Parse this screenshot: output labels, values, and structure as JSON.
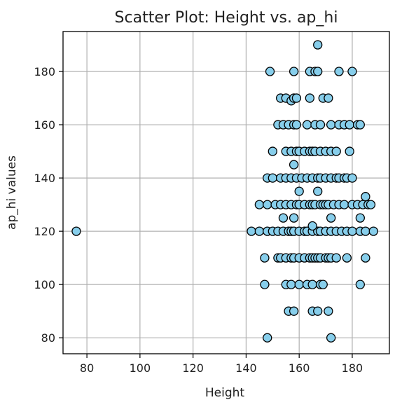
{
  "chart_data": {
    "type": "scatter",
    "title": "Scatter Plot: Height vs. ap_hi",
    "xlabel": "Height",
    "ylabel": "ap_hi values",
    "xlim": [
      71,
      194
    ],
    "ylim": [
      74,
      195
    ],
    "xticks": [
      80,
      100,
      120,
      140,
      160,
      180
    ],
    "yticks": [
      80,
      100,
      120,
      140,
      160,
      180
    ],
    "grid": true,
    "marker_color": "#87CEEB",
    "marker_edge_color": "#000000",
    "points": [
      [
        76,
        120
      ],
      [
        148,
        80
      ],
      [
        172,
        80
      ],
      [
        156,
        90
      ],
      [
        158,
        90
      ],
      [
        165,
        90
      ],
      [
        167,
        90
      ],
      [
        171,
        90
      ],
      [
        147,
        100
      ],
      [
        155,
        100
      ],
      [
        157,
        100
      ],
      [
        160,
        100
      ],
      [
        163,
        100
      ],
      [
        165,
        100
      ],
      [
        168,
        100
      ],
      [
        169,
        100
      ],
      [
        183,
        100
      ],
      [
        147,
        110
      ],
      [
        152,
        110
      ],
      [
        153,
        110
      ],
      [
        155,
        110
      ],
      [
        157,
        110
      ],
      [
        158,
        110
      ],
      [
        160,
        110
      ],
      [
        162,
        110
      ],
      [
        164,
        110
      ],
      [
        165,
        110
      ],
      [
        166,
        110
      ],
      [
        167,
        110
      ],
      [
        168,
        110
      ],
      [
        170,
        110
      ],
      [
        171,
        110
      ],
      [
        172,
        110
      ],
      [
        174,
        110
      ],
      [
        178,
        110
      ],
      [
        185,
        110
      ],
      [
        142,
        120
      ],
      [
        145,
        120
      ],
      [
        148,
        120
      ],
      [
        150,
        120
      ],
      [
        152,
        120
      ],
      [
        154,
        120
      ],
      [
        156,
        120
      ],
      [
        157,
        120
      ],
      [
        158,
        120
      ],
      [
        160,
        120
      ],
      [
        162,
        120
      ],
      [
        163,
        120
      ],
      [
        165,
        120
      ],
      [
        167,
        120
      ],
      [
        168,
        120
      ],
      [
        170,
        120
      ],
      [
        172,
        120
      ],
      [
        174,
        120
      ],
      [
        176,
        120
      ],
      [
        178,
        120
      ],
      [
        180,
        120
      ],
      [
        183,
        120
      ],
      [
        185,
        120
      ],
      [
        188,
        120
      ],
      [
        154,
        125
      ],
      [
        158,
        125
      ],
      [
        165,
        122
      ],
      [
        172,
        125
      ],
      [
        183,
        125
      ],
      [
        145,
        130
      ],
      [
        148,
        130
      ],
      [
        151,
        130
      ],
      [
        153,
        130
      ],
      [
        155,
        130
      ],
      [
        157,
        130
      ],
      [
        159,
        130
      ],
      [
        160,
        130
      ],
      [
        162,
        130
      ],
      [
        164,
        130
      ],
      [
        165,
        130
      ],
      [
        166,
        130
      ],
      [
        168,
        130
      ],
      [
        169,
        130
      ],
      [
        170,
        130
      ],
      [
        171,
        130
      ],
      [
        173,
        130
      ],
      [
        175,
        130
      ],
      [
        177,
        130
      ],
      [
        180,
        130
      ],
      [
        182,
        130
      ],
      [
        184,
        130
      ],
      [
        186,
        130
      ],
      [
        187,
        130
      ],
      [
        185,
        133
      ],
      [
        160,
        135
      ],
      [
        167,
        135
      ],
      [
        148,
        140
      ],
      [
        150,
        140
      ],
      [
        153,
        140
      ],
      [
        155,
        140
      ],
      [
        157,
        140
      ],
      [
        159,
        140
      ],
      [
        161,
        140
      ],
      [
        163,
        140
      ],
      [
        165,
        140
      ],
      [
        167,
        140
      ],
      [
        168,
        140
      ],
      [
        170,
        140
      ],
      [
        172,
        140
      ],
      [
        174,
        140
      ],
      [
        175,
        140
      ],
      [
        177,
        140
      ],
      [
        178,
        140
      ],
      [
        180,
        140
      ],
      [
        158,
        145
      ],
      [
        150,
        150
      ],
      [
        155,
        150
      ],
      [
        157,
        150
      ],
      [
        159,
        150
      ],
      [
        160,
        150
      ],
      [
        162,
        150
      ],
      [
        164,
        150
      ],
      [
        165,
        150
      ],
      [
        166,
        150
      ],
      [
        168,
        150
      ],
      [
        170,
        150
      ],
      [
        172,
        150
      ],
      [
        174,
        150
      ],
      [
        179,
        150
      ],
      [
        152,
        160
      ],
      [
        154,
        160
      ],
      [
        156,
        160
      ],
      [
        158,
        160
      ],
      [
        159,
        160
      ],
      [
        163,
        160
      ],
      [
        166,
        160
      ],
      [
        168,
        160
      ],
      [
        172,
        160
      ],
      [
        175,
        160
      ],
      [
        177,
        160
      ],
      [
        179,
        160
      ],
      [
        182,
        160
      ],
      [
        183,
        160
      ],
      [
        153,
        170
      ],
      [
        155,
        170
      ],
      [
        157,
        169
      ],
      [
        158,
        170
      ],
      [
        159,
        170
      ],
      [
        164,
        170
      ],
      [
        169,
        170
      ],
      [
        171,
        170
      ],
      [
        149,
        180
      ],
      [
        158,
        180
      ],
      [
        164,
        180
      ],
      [
        166,
        180
      ],
      [
        167,
        180
      ],
      [
        175,
        180
      ],
      [
        180,
        180
      ],
      [
        167,
        190
      ]
    ]
  }
}
